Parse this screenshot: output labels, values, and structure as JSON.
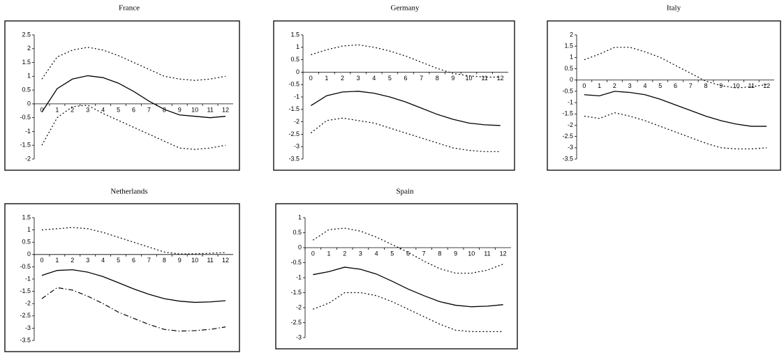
{
  "chart_data": [
    {
      "type": "line",
      "title": "France",
      "x": [
        0,
        1,
        2,
        3,
        4,
        5,
        6,
        7,
        8,
        9,
        10,
        11,
        12
      ],
      "ylim": [
        -2,
        2.5
      ],
      "yticks": [
        2.5,
        2,
        1.5,
        1,
        0.5,
        0,
        -0.5,
        -1,
        -1.5,
        -2
      ],
      "series": [
        {
          "color": "#000000",
          "style": "dotted",
          "values": [
            0.9,
            1.7,
            1.95,
            2.05,
            1.95,
            1.75,
            1.5,
            1.25,
            1.0,
            0.9,
            0.85,
            0.9,
            1.0
          ]
        },
        {
          "color": "#000000",
          "style": "solid",
          "values": [
            -0.3,
            0.55,
            0.9,
            1.02,
            0.95,
            0.75,
            0.45,
            0.1,
            -0.2,
            -0.4,
            -0.45,
            -0.5,
            -0.45
          ]
        },
        {
          "color": "#000000",
          "style": "dotted",
          "values": [
            -1.5,
            -0.5,
            -0.1,
            -0.05,
            -0.35,
            -0.6,
            -0.85,
            -1.1,
            -1.35,
            -1.6,
            -1.65,
            -1.6,
            -1.5
          ]
        }
      ]
    },
    {
      "type": "line",
      "title": "Germany",
      "x": [
        0,
        1,
        2,
        3,
        4,
        5,
        6,
        7,
        8,
        9,
        10,
        11,
        12
      ],
      "ylim": [
        -3.5,
        1.5
      ],
      "yticks": [
        1.5,
        1,
        0.5,
        0,
        -0.5,
        -1,
        -1.5,
        -2,
        -2.5,
        -3,
        -3.5
      ],
      "series": [
        {
          "color": "#000000",
          "style": "dotted",
          "values": [
            0.7,
            0.9,
            1.05,
            1.1,
            1.0,
            0.85,
            0.65,
            0.4,
            0.15,
            -0.05,
            -0.15,
            -0.2,
            -0.2
          ]
        },
        {
          "color": "#000000",
          "style": "solid",
          "values": [
            -1.35,
            -0.95,
            -0.8,
            -0.77,
            -0.85,
            -1.0,
            -1.2,
            -1.45,
            -1.7,
            -1.9,
            -2.05,
            -2.12,
            -2.15
          ]
        },
        {
          "color": "#000000",
          "style": "dotted",
          "values": [
            -2.45,
            -1.95,
            -1.85,
            -1.95,
            -2.05,
            -2.25,
            -2.45,
            -2.65,
            -2.85,
            -3.05,
            -3.15,
            -3.2,
            -3.2
          ]
        }
      ]
    },
    {
      "type": "line",
      "title": "Italy",
      "x": [
        0,
        1,
        2,
        3,
        4,
        5,
        6,
        7,
        8,
        9,
        10,
        11,
        12
      ],
      "ylim": [
        -3.5,
        2
      ],
      "yticks": [
        2,
        1.5,
        1,
        0.5,
        0,
        -0.5,
        -1,
        -1.5,
        -2,
        -2.5,
        -3,
        -3.5
      ],
      "series": [
        {
          "color": "#000000",
          "style": "dotted",
          "values": [
            0.9,
            1.15,
            1.45,
            1.45,
            1.25,
            1.0,
            0.65,
            0.3,
            -0.05,
            -0.25,
            -0.35,
            -0.3,
            -0.2
          ]
        },
        {
          "color": "#000000",
          "style": "solid",
          "values": [
            -0.65,
            -0.7,
            -0.5,
            -0.55,
            -0.65,
            -0.85,
            -1.1,
            -1.35,
            -1.6,
            -1.8,
            -1.95,
            -2.05,
            -2.05
          ]
        },
        {
          "color": "#000000",
          "style": "dotted",
          "values": [
            -1.6,
            -1.7,
            -1.45,
            -1.6,
            -1.8,
            -2.05,
            -2.3,
            -2.55,
            -2.8,
            -3.0,
            -3.05,
            -3.05,
            -3.0
          ]
        }
      ]
    },
    {
      "type": "line",
      "title": "Netherlands",
      "x": [
        0,
        1,
        2,
        3,
        4,
        5,
        6,
        7,
        8,
        9,
        10,
        11,
        12
      ],
      "ylim": [
        -3.5,
        1.5
      ],
      "yticks": [
        1.5,
        1,
        0.5,
        0,
        -0.5,
        -1,
        -1.5,
        -2,
        -2.5,
        -3,
        -3.5
      ],
      "series": [
        {
          "color": "#000000",
          "style": "dotted",
          "values": [
            1.0,
            1.05,
            1.1,
            1.05,
            0.9,
            0.7,
            0.5,
            0.3,
            0.1,
            0.02,
            0.03,
            0.05,
            0.08
          ]
        },
        {
          "color": "#000000",
          "style": "solid",
          "values": [
            -0.85,
            -0.65,
            -0.62,
            -0.72,
            -0.9,
            -1.15,
            -1.4,
            -1.62,
            -1.8,
            -1.9,
            -1.95,
            -1.93,
            -1.88
          ]
        },
        {
          "color": "#000000",
          "style": "dashdot",
          "values": [
            -1.8,
            -1.35,
            -1.45,
            -1.7,
            -2.0,
            -2.35,
            -2.6,
            -2.85,
            -3.05,
            -3.12,
            -3.1,
            -3.05,
            -2.95
          ]
        }
      ]
    },
    {
      "type": "line",
      "title": "Spain",
      "x": [
        0,
        1,
        2,
        3,
        4,
        5,
        6,
        7,
        8,
        9,
        10,
        11,
        12
      ],
      "ylim": [
        -3,
        1
      ],
      "yticks": [
        1,
        0.5,
        0,
        -0.5,
        -1,
        -1.5,
        -2,
        -2.5,
        -3
      ],
      "series": [
        {
          "color": "#000000",
          "style": "dotted",
          "values": [
            0.25,
            0.6,
            0.65,
            0.55,
            0.35,
            0.1,
            -0.15,
            -0.45,
            -0.7,
            -0.85,
            -0.85,
            -0.75,
            -0.55
          ]
        },
        {
          "color": "#000000",
          "style": "solid",
          "values": [
            -0.9,
            -0.8,
            -0.65,
            -0.72,
            -0.88,
            -1.12,
            -1.38,
            -1.6,
            -1.8,
            -1.92,
            -1.97,
            -1.95,
            -1.9
          ]
        },
        {
          "color": "#000000",
          "style": "dotted",
          "values": [
            -2.05,
            -1.85,
            -1.5,
            -1.5,
            -1.6,
            -1.8,
            -2.05,
            -2.3,
            -2.55,
            -2.75,
            -2.8,
            -2.8,
            -2.8
          ]
        }
      ]
    }
  ]
}
